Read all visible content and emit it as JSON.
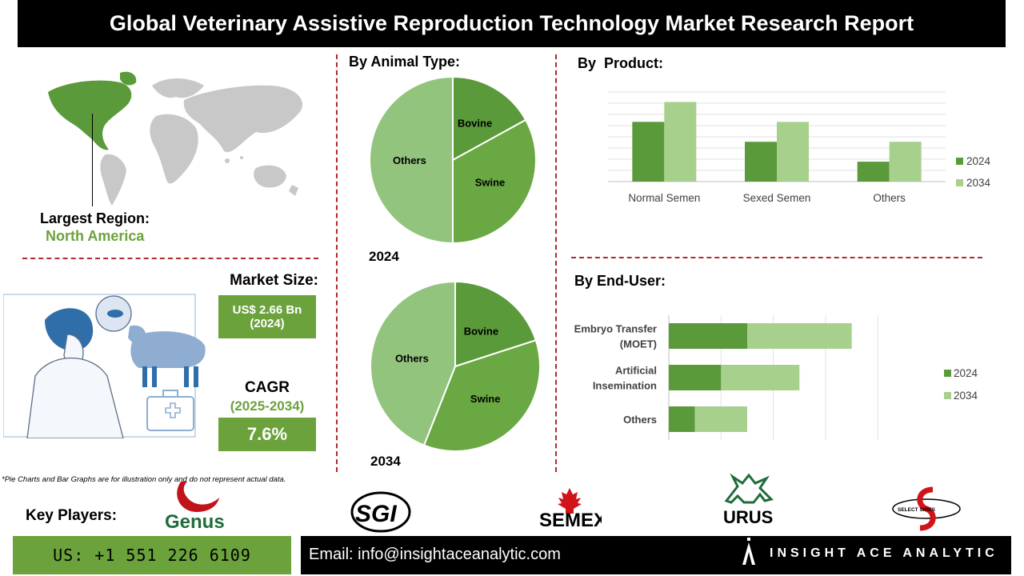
{
  "header": {
    "title": "Global Veterinary Assistive Reproduction Technology Market Research Report"
  },
  "region": {
    "label": "Largest Region:",
    "value": "North America"
  },
  "market_size": {
    "label": "Market Size:",
    "value_line1": "US$ 2.66 Bn",
    "value_line2": "(2024)"
  },
  "cagr": {
    "label": "CAGR",
    "period": "(2025-2034)",
    "value": "7.6%"
  },
  "animal_type": {
    "title": "By Animal Type:"
  },
  "product": {
    "title": "By  Product:"
  },
  "end_user": {
    "title": "By End-User:"
  },
  "footnote": "*Pie Charts and Bar Graphs are for illustration only and do not represent actual data.",
  "key_players": {
    "label": "Key Players:",
    "logos": [
      "Genus",
      "SGI",
      "SEMEX",
      "URUS",
      "SELECT SIRES"
    ]
  },
  "footer": {
    "phone": "US: +1 551 226 6109",
    "email": "Email: info@insightaceanalytic.com",
    "brand": "INSIGHT ACE ANALYTIC"
  },
  "colors": {
    "dark_green": "#5b9a3a",
    "mid_green": "#6aa843",
    "light_green": "#93c47d",
    "pale_green": "#a8d08d",
    "accent_red": "#b02a2a"
  },
  "chart_data": [
    {
      "type": "pie",
      "title": "2024",
      "labels": [
        "Bovine",
        "Swine",
        "Others"
      ],
      "values": [
        17,
        33,
        50
      ]
    },
    {
      "type": "pie",
      "title": "2034",
      "labels": [
        "Bovine",
        "Swine",
        "Others"
      ],
      "values": [
        20,
        36,
        44
      ]
    },
    {
      "type": "bar",
      "categories": [
        "Normal Semen",
        "Sexed Semen",
        "Others"
      ],
      "series": [
        {
          "name": "2024",
          "values": [
            3,
            2,
            1
          ]
        },
        {
          "name": "2034",
          "values": [
            4,
            3,
            2
          ]
        }
      ],
      "ylim": [
        0,
        4.5
      ]
    },
    {
      "type": "bar",
      "orientation": "horizontal",
      "categories": [
        "Embryo Transfer (MOET)",
        "Artificial Insemination",
        "Others"
      ],
      "series": [
        {
          "name": "2024",
          "values": [
            3,
            2,
            1
          ]
        },
        {
          "name": "2034",
          "values": [
            7,
            5,
            3
          ]
        }
      ],
      "xlim": [
        0,
        9
      ]
    }
  ]
}
